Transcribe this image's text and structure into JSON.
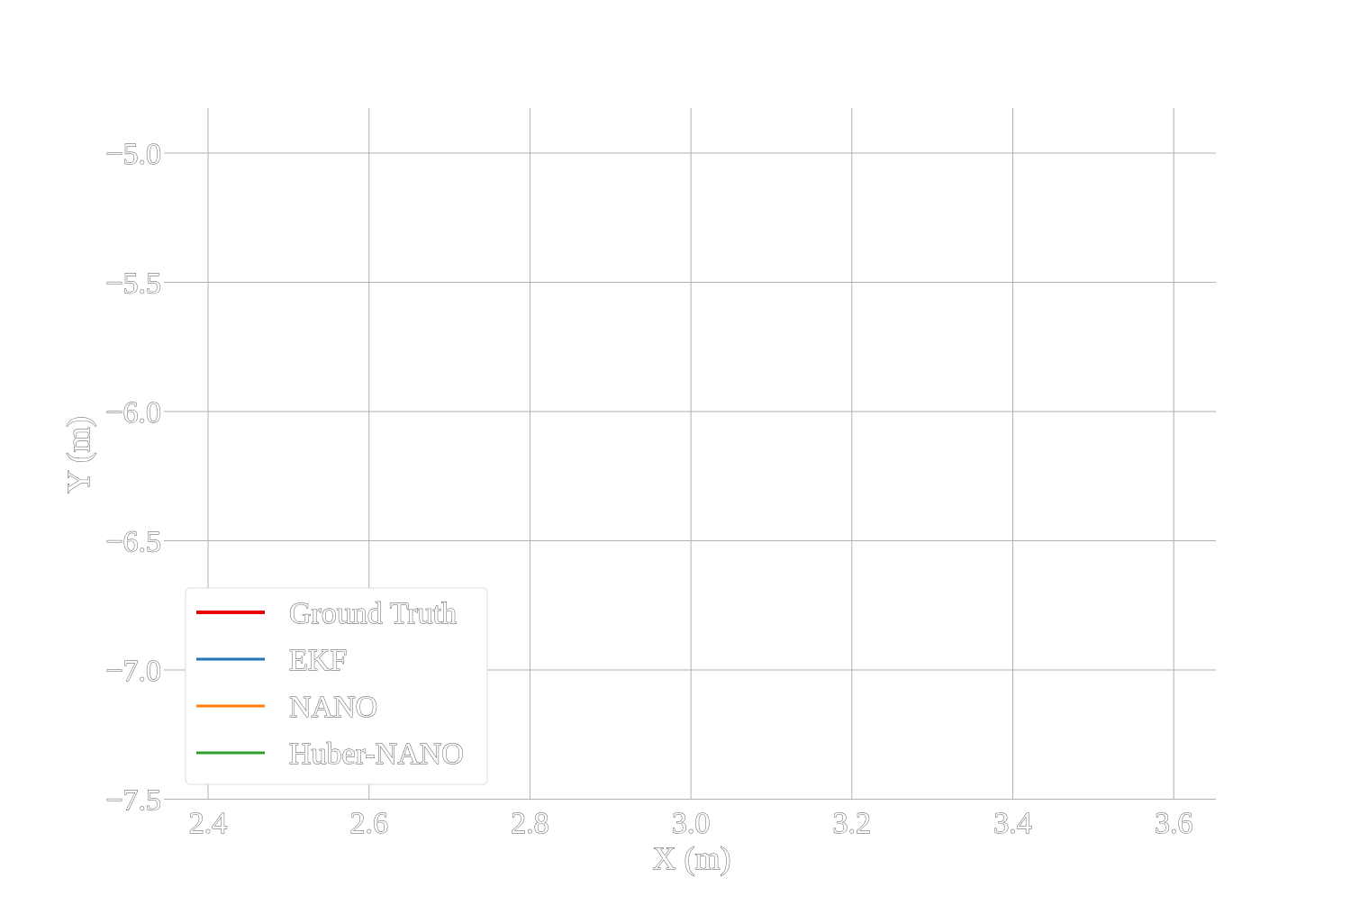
{
  "chart_data": {
    "type": "line",
    "title": "",
    "xlabel": "X (m)",
    "ylabel": "Y (m)",
    "xlim": [
      2.35,
      3.65
    ],
    "ylim": [
      -7.5,
      -4.83
    ],
    "xticks": [
      2.4,
      2.6,
      2.8,
      3.0,
      3.2,
      3.4,
      3.6
    ],
    "xtick_labels": [
      "2.4",
      "2.6",
      "2.8",
      "3.0",
      "3.2",
      "3.4",
      "3.6"
    ],
    "yticks": [
      -5.0,
      -5.5,
      -6.0,
      -6.5,
      -7.0,
      -7.5
    ],
    "ytick_labels": [
      "−5.0",
      "−5.5",
      "−6.0",
      "−6.5",
      "−7.0",
      "−7.5"
    ],
    "grid": true,
    "legend_position": "lower-left",
    "series": [
      {
        "name": "Ground Truth",
        "color": "#e8000b",
        "x": [],
        "y": []
      },
      {
        "name": "EKF",
        "color": "#1f77b4",
        "x": [],
        "y": []
      },
      {
        "name": "NANO",
        "color": "#ff7f0e",
        "x": [],
        "y": []
      },
      {
        "name": "Huber-NANO",
        "color": "#2ca02c",
        "x": [],
        "y": []
      }
    ]
  }
}
